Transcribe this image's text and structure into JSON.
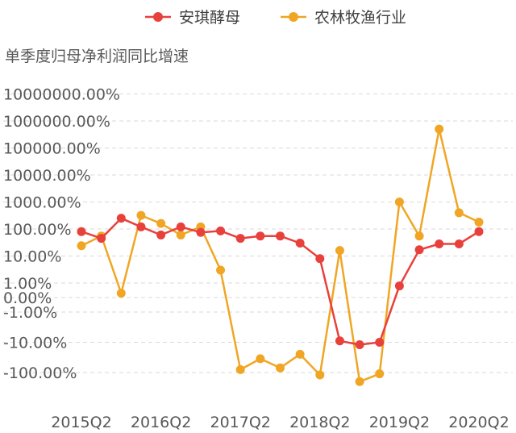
{
  "chart_data": {
    "type": "line",
    "ylabel": "单季度归母净利润同比增速",
    "yscale": "symlog",
    "colors": {
      "安琪酵母": "#e8413c",
      "农林牧渔行业": "#f0a624"
    },
    "categories": [
      "2015Q2",
      "2015Q3",
      "2015Q4",
      "2016Q1",
      "2016Q2",
      "2016Q3",
      "2016Q4",
      "2017Q1",
      "2017Q2",
      "2017Q3",
      "2017Q4",
      "2018Q1",
      "2018Q2",
      "2018Q3",
      "2018Q4",
      "2019Q1",
      "2019Q2",
      "2019Q3",
      "2019Q4",
      "2020Q1",
      "2020Q2"
    ],
    "x_tick_labels": [
      "2015Q2",
      "2016Q2",
      "2017Q2",
      "2018Q2",
      "2019Q2",
      "2020Q2"
    ],
    "y_ticks": [
      {
        "value": 10000000,
        "label": "10000000.00%"
      },
      {
        "value": 1000000,
        "label": "1000000.00%"
      },
      {
        "value": 100000,
        "label": "100000.00%"
      },
      {
        "value": 10000,
        "label": "10000.00%"
      },
      {
        "value": 1000,
        "label": "1000.00%"
      },
      {
        "value": 100,
        "label": "100.00%"
      },
      {
        "value": 10,
        "label": "10.00%"
      },
      {
        "value": 1,
        "label": "1.00%"
      },
      {
        "value": 0,
        "label": "0.00%"
      },
      {
        "value": -1,
        "label": "-1.00%"
      },
      {
        "value": -10,
        "label": "-10.00%"
      },
      {
        "value": -100,
        "label": "-100.00%"
      }
    ],
    "series": [
      {
        "name": "安琪酵母",
        "values": [
          80,
          45,
          250,
          120,
          60,
          120,
          75,
          85,
          45,
          55,
          55,
          30,
          8,
          -9,
          -12,
          -10,
          0.8,
          17,
          28,
          28,
          80
        ]
      },
      {
        "name": "农林牧渔行业",
        "values": [
          24,
          55,
          0.3,
          320,
          160,
          60,
          120,
          3,
          -80,
          -35,
          -70,
          -25,
          -120,
          16,
          -200,
          -110,
          1000,
          55,
          500000,
          400,
          180
        ]
      }
    ]
  }
}
